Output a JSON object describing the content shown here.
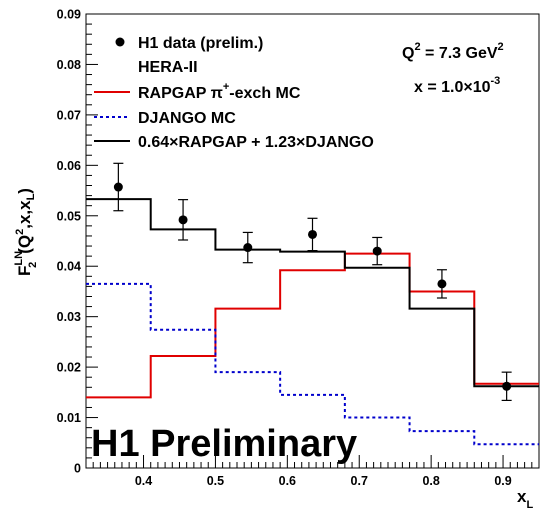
{
  "chart_data": {
    "type": "step",
    "xlabel": "x",
    "xlabel_sub": "L",
    "ylabel_parts": {
      "base": "F",
      "sup": "LN",
      "sub": "2",
      "args": "(Q",
      "args_sup": "2",
      "args_rest": ",x,x",
      "args_sub": "L",
      "args_end": ")"
    },
    "xlim": [
      0.32,
      0.95
    ],
    "ylim": [
      0,
      0.09
    ],
    "xticks": [
      0.4,
      0.5,
      0.6,
      0.7,
      0.8,
      0.9
    ],
    "xtick_labels": [
      "0.4",
      "0.5",
      "0.6",
      "0.7",
      "0.8",
      "0.9"
    ],
    "yticks": [
      0,
      0.01,
      0.02,
      0.03,
      0.04,
      0.05,
      0.06,
      0.07,
      0.08,
      0.09
    ],
    "ytick_labels": [
      "0",
      "0.01",
      "0.02",
      "0.03",
      "0.04",
      "0.05",
      "0.06",
      "0.07",
      "0.08",
      "0.09"
    ],
    "bin_edges": [
      0.32,
      0.41,
      0.5,
      0.59,
      0.68,
      0.77,
      0.86,
      0.95
    ],
    "data_points": {
      "x": [
        0.365,
        0.455,
        0.545,
        0.635,
        0.725,
        0.815,
        0.905
      ],
      "y": [
        0.0557,
        0.0492,
        0.0437,
        0.0463,
        0.043,
        0.0365,
        0.0162
      ],
      "yerr": [
        0.0047,
        0.004,
        0.003,
        0.0032,
        0.0027,
        0.0028,
        0.0028
      ]
    },
    "series": [
      {
        "name": "RAPGAP π+-exch MC",
        "color": "#e00000",
        "dash": "solid",
        "values": [
          0.014,
          0.0222,
          0.0316,
          0.0392,
          0.0425,
          0.035,
          0.0167
        ]
      },
      {
        "name": "DJANGO MC",
        "color": "#0000cc",
        "dash": "dotted",
        "values": [
          0.0365,
          0.0274,
          0.019,
          0.0145,
          0.01,
          0.0073,
          0.0047
        ]
      },
      {
        "name": "0.64×RAPGAP + 1.23×DJANGO",
        "color": "#000000",
        "dash": "solid",
        "values": [
          0.0533,
          0.0473,
          0.0433,
          0.0429,
          0.0397,
          0.0316,
          0.0162
        ]
      }
    ]
  },
  "legend": {
    "data_label": "H1 data (prelim.)",
    "data_sublabel": "HERA-II",
    "rapgap_label": "RAPGAP π",
    "rapgap_sup": "+",
    "rapgap_rest": "-exch MC",
    "django_label": "DJANGO MC",
    "combo_label": "0.64×RAPGAP + 1.23×DJANGO"
  },
  "annotation": {
    "q2_pre": "Q",
    "q2_sup": "2",
    "q2_post": " = 7.3 GeV",
    "q2_unit_sup": "2",
    "x_pre": "x = 1.0×10",
    "x_sup": "-3"
  },
  "watermark": "H1 Preliminary"
}
